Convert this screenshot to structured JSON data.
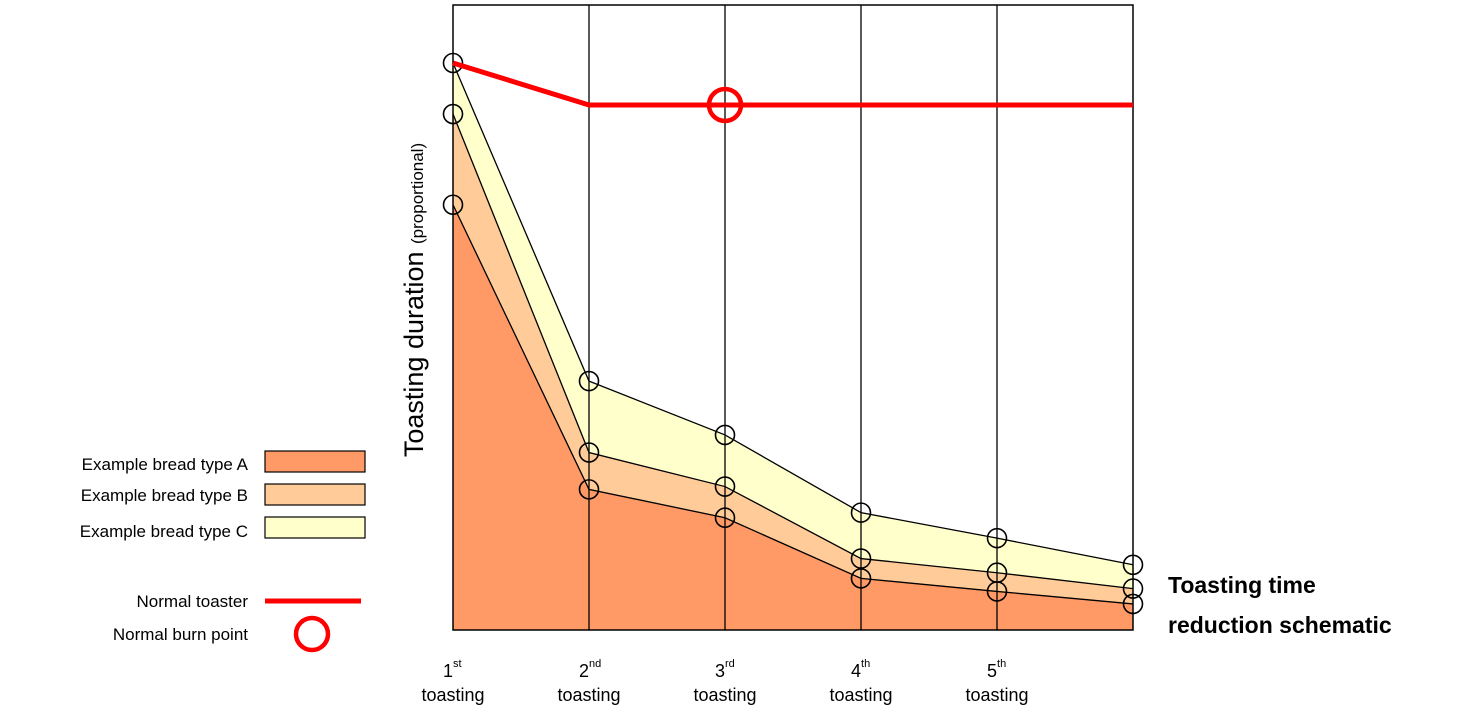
{
  "chart_data": {
    "type": "area",
    "title_lines": [
      "Toasting time",
      "reduction schematic"
    ],
    "ylabel": "Toasting duration",
    "ylabel_note": "(proportional)",
    "x": [
      1,
      2,
      3,
      4,
      5,
      6
    ],
    "x_ticks": [
      {
        "num": "1",
        "sup": "st",
        "word": "toasting"
      },
      {
        "num": "2",
        "sup": "nd",
        "word": "toasting"
      },
      {
        "num": "3",
        "sup": "rd",
        "word": "toasting"
      },
      {
        "num": "4",
        "sup": "th",
        "word": "toasting"
      },
      {
        "num": "5",
        "sup": "th",
        "word": "toasting"
      }
    ],
    "xlim": [
      1,
      6
    ],
    "ylim": [
      0,
      1
    ],
    "grid": true,
    "series": [
      {
        "name": "Example bread type A",
        "key": "A",
        "color": "#FF9966",
        "values": [
          0.75,
          0.248,
          0.198,
          0.091,
          0.068,
          0.046
        ]
      },
      {
        "name": "Example bread type B",
        "key": "B",
        "color": "#FFCC99",
        "values": [
          0.91,
          0.313,
          0.253,
          0.126,
          0.101,
          0.073
        ]
      },
      {
        "name": "Example bread type C",
        "key": "C",
        "color": "#FFFFCC",
        "values": [
          1.0,
          0.439,
          0.344,
          0.207,
          0.162,
          0.115
        ]
      }
    ],
    "normal_toaster": {
      "name": "Normal toaster",
      "color": "#FF0000",
      "values": [
        1.0,
        0.926,
        0.926,
        0.926,
        0.926,
        0.926
      ]
    },
    "burn_point": {
      "name": "Normal burn point",
      "color": "#FF0000",
      "x": 3,
      "y": 0.926
    },
    "legend_position": "left"
  }
}
